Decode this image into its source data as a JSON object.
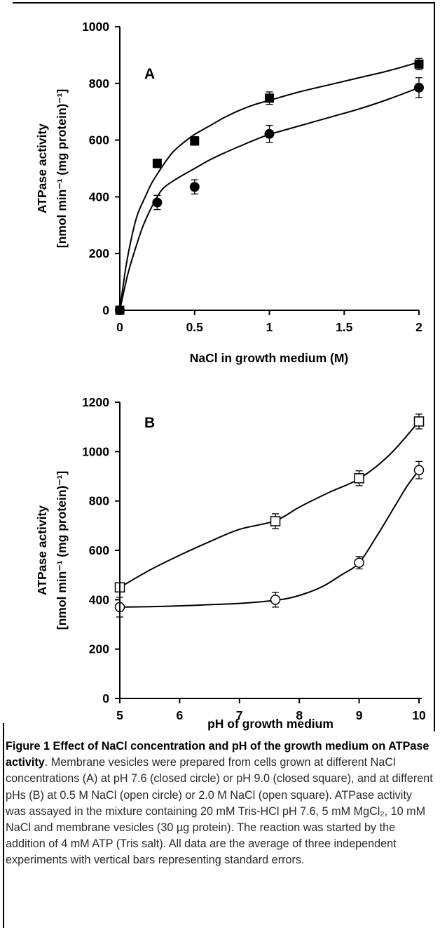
{
  "chart_data": [
    {
      "type": "scatter",
      "panel_label": "A",
      "xlabel": "NaCl in growth medium (M)",
      "ylabel_line1": "ATPase activity",
      "ylabel_line2": "[nmol min⁻¹ (mg protein)⁻¹]",
      "xlim": [
        0,
        2
      ],
      "ylim": [
        0,
        1000
      ],
      "xticks": [
        0,
        0.5,
        1,
        1.5,
        2
      ],
      "xtick_labels": [
        "0",
        "0.5",
        "1",
        "1.5",
        "2"
      ],
      "yticks": [
        0,
        200,
        400,
        600,
        800,
        1000
      ],
      "ytick_labels": [
        "0",
        "200",
        "400",
        "600",
        "800",
        "1000"
      ],
      "grid": false,
      "series": [
        {
          "marker": "filled-circle",
          "x": [
            0,
            0.25,
            0.5,
            1,
            2
          ],
          "y": [
            0,
            380,
            435,
            622,
            785
          ],
          "err": [
            0,
            25,
            25,
            30,
            35
          ],
          "curve": [
            [
              0,
              0
            ],
            [
              0.05,
              120
            ],
            [
              0.1,
              210
            ],
            [
              0.15,
              290
            ],
            [
              0.2,
              350
            ],
            [
              0.25,
              400
            ],
            [
              0.3,
              435
            ],
            [
              0.4,
              470
            ],
            [
              0.5,
              500
            ],
            [
              0.6,
              530
            ],
            [
              0.7,
              555
            ],
            [
              0.8,
              578
            ],
            [
              0.9,
              600
            ],
            [
              1,
              620
            ],
            [
              1.2,
              650
            ],
            [
              1.4,
              680
            ],
            [
              1.6,
              710
            ],
            [
              1.8,
              745
            ],
            [
              2,
              785
            ]
          ]
        },
        {
          "marker": "filled-square",
          "x": [
            0,
            0.25,
            0.5,
            1,
            2
          ],
          "y": [
            0,
            518,
            597,
            748,
            868
          ],
          "err": [
            0,
            15,
            15,
            22,
            20
          ],
          "curve": [
            [
              0,
              0
            ],
            [
              0.04,
              150
            ],
            [
              0.08,
              260
            ],
            [
              0.12,
              340
            ],
            [
              0.17,
              400
            ],
            [
              0.21,
              445
            ],
            [
              0.25,
              480
            ],
            [
              0.3,
              520
            ],
            [
              0.35,
              555
            ],
            [
              0.4,
              580
            ],
            [
              0.5,
              620
            ],
            [
              0.6,
              650
            ],
            [
              0.7,
              680
            ],
            [
              0.8,
              705
            ],
            [
              0.9,
              725
            ],
            [
              1,
              740
            ],
            [
              1.2,
              770
            ],
            [
              1.4,
              795
            ],
            [
              1.6,
              820
            ],
            [
              1.8,
              845
            ],
            [
              2,
              875
            ]
          ]
        }
      ]
    },
    {
      "type": "scatter",
      "panel_label": "B",
      "xlabel": "pH of growth medium",
      "ylabel_line1": "ATPase activity",
      "ylabel_line2": "[nmol min⁻¹ (mg protein)⁻¹]",
      "xlim": [
        5,
        10
      ],
      "ylim": [
        0,
        1200
      ],
      "xticks": [
        5,
        6,
        7,
        8,
        9,
        10
      ],
      "xtick_labels": [
        "5",
        "6",
        "7",
        "8",
        "9",
        "10"
      ],
      "yticks": [
        0,
        200,
        400,
        600,
        800,
        1000,
        1200
      ],
      "ytick_labels": [
        "0",
        "200",
        "400",
        "600",
        "800",
        "1000",
        "1200"
      ],
      "grid": false,
      "series": [
        {
          "marker": "open-circle",
          "x": [
            5,
            7.6,
            9,
            10
          ],
          "y": [
            370,
            400,
            550,
            925
          ],
          "err": [
            40,
            30,
            25,
            35
          ],
          "curve": [
            [
              5,
              370
            ],
            [
              5.5,
              372
            ],
            [
              6,
              375
            ],
            [
              6.5,
              380
            ],
            [
              7,
              385
            ],
            [
              7.5,
              395
            ],
            [
              7.8,
              405
            ],
            [
              8.1,
              425
            ],
            [
              8.4,
              455
            ],
            [
              8.7,
              500
            ],
            [
              9,
              550
            ],
            [
              9.3,
              660
            ],
            [
              9.6,
              780
            ],
            [
              9.8,
              860
            ],
            [
              10,
              925
            ]
          ]
        },
        {
          "marker": "open-square",
          "x": [
            5,
            7.6,
            9,
            10
          ],
          "y": [
            450,
            718,
            892,
            1122
          ],
          "err": [
            10,
            30,
            30,
            30
          ],
          "curve": [
            [
              5,
              450
            ],
            [
              5.5,
              520
            ],
            [
              6,
              580
            ],
            [
              6.5,
              635
            ],
            [
              7,
              685
            ],
            [
              7.6,
              720
            ],
            [
              8,
              775
            ],
            [
              8.5,
              835
            ],
            [
              9,
              890
            ],
            [
              9.5,
              985
            ],
            [
              10,
              1122
            ]
          ]
        }
      ]
    }
  ],
  "caption": {
    "title": "Figure 1 Effect of NaCl concentration and pH of the growth medium on ATPase activity",
    "body": ". Membrane vesicles were prepared from cells grown at different NaCl concentrations (A) at pH 7.6 (closed circle) or pH 9.0 (closed square), and at different pHs (B) at 0.5 M NaCl (open circle) or 2.0 M NaCl (open square). ATPase activity was assayed in the mixture containing 20 mM Tris-HCl pH 7.6, 5 mM MgCl₂, 10 mM NaCl and membrane vesicles (30 µg protein). The reaction was started by the addition of 4 mM ATP (Tris salt). All data are the average of three independent experiments with vertical bars representing standard errors."
  }
}
